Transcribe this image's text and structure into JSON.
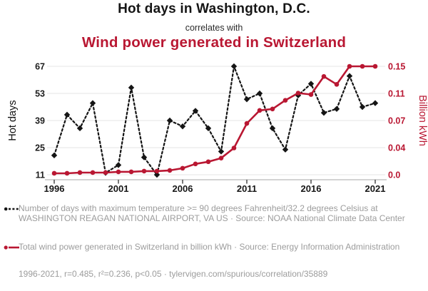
{
  "header": {
    "title_top": "Hot days in Washington, D.C.",
    "connector": "correlates with",
    "title_bottom": "Wind power generated in Switzerland"
  },
  "colors": {
    "red_accent": "#b91732",
    "black_series": "#151515",
    "grid": "#e6e6e6",
    "axis_line": "#b9b9b9",
    "tick": "#4a4a4a",
    "legend_text": "#9c9c9c"
  },
  "chart_data": {
    "type": "line",
    "x": [
      1996,
      1997,
      1998,
      1999,
      2000,
      2001,
      2002,
      2003,
      2004,
      2005,
      2006,
      2007,
      2008,
      2009,
      2010,
      2011,
      2012,
      2013,
      2014,
      2015,
      2016,
      2017,
      2018,
      2019,
      2020,
      2021
    ],
    "series": [
      {
        "name": "Hot days in Washington, D.C.",
        "axis": "left",
        "style": "dashed",
        "marker": "diamond",
        "color": "#151515",
        "values": [
          21,
          42,
          35,
          48,
          12,
          16,
          56,
          20,
          11,
          39,
          36,
          44,
          35,
          23,
          67,
          50,
          53,
          35,
          24,
          52,
          58,
          43,
          45,
          62,
          46,
          48
        ]
      },
      {
        "name": "Wind power generated in Switzerland",
        "axis": "right",
        "style": "solid",
        "marker": "circle",
        "color": "#b91732",
        "values": [
          0.002,
          0.002,
          0.003,
          0.003,
          0.003,
          0.004,
          0.004,
          0.005,
          0.005,
          0.006,
          0.009,
          0.015,
          0.018,
          0.023,
          0.037,
          0.071,
          0.089,
          0.091,
          0.103,
          0.113,
          0.111,
          0.136,
          0.125,
          0.15,
          0.15,
          0.15
        ]
      }
    ],
    "left_axis": {
      "label": "Hot days",
      "ticks": [
        67,
        53,
        39,
        25,
        11
      ],
      "range": [
        11,
        67
      ]
    },
    "right_axis": {
      "label": "Billion kWh",
      "tick_labels": [
        "0.15",
        "0.11",
        "0.07",
        "0.04",
        "0.0"
      ],
      "range": [
        0,
        0.15
      ]
    },
    "x_ticks": [
      1996,
      2001,
      2006,
      2011,
      2016,
      2021
    ],
    "grid": "horizontal",
    "legend_position": "below-left"
  },
  "legend": {
    "items": [
      {
        "marker": "black-diamond-dashed",
        "text": "Number of days with maximum temperature >= 90 degrees Fahrenheit/32.2 degrees Celsius at WASHINGTON REAGAN NATIONAL AIRPORT, VA US · Source: NOAA National Climate Data Center"
      },
      {
        "marker": "red-circle-solid",
        "text": "Total wind power generated in Switzerland in billion kWh · Source: Energy Information Administration"
      }
    ]
  },
  "footer": {
    "text": "1996-2021, r=0.485, r²=0.236, p<0.05 · tylervigen.com/spurious/correlation/35889"
  }
}
